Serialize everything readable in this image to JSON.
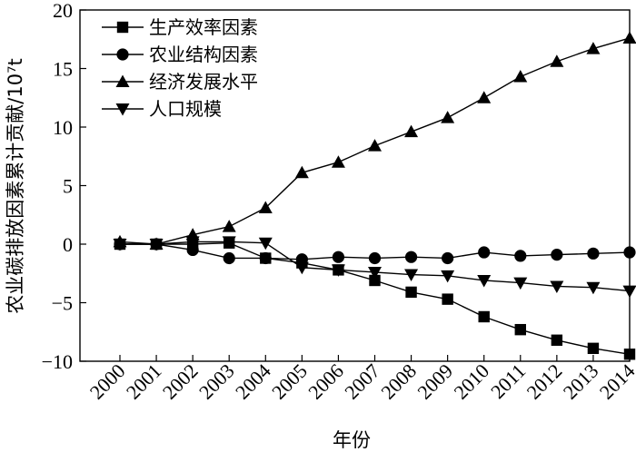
{
  "chart_data": {
    "type": "line",
    "xlabel": "年份",
    "ylabel": "农业碳排放因素累计贡献/10⁷t",
    "x": [
      "2000",
      "2001",
      "2002",
      "2003",
      "2004",
      "2005",
      "2006",
      "2007",
      "2008",
      "2009",
      "2010",
      "2011",
      "2012",
      "2013",
      "2014"
    ],
    "ylim": [
      -10,
      20
    ],
    "yticks": [
      -10,
      -5,
      0,
      5,
      10,
      15,
      20
    ],
    "legend_position": "top-left",
    "series": [
      {
        "name": "生产效率因素",
        "marker": "square",
        "values": [
          0.0,
          0.0,
          0.0,
          0.1,
          -1.2,
          -1.6,
          -2.2,
          -3.1,
          -4.1,
          -4.7,
          -6.2,
          -7.3,
          -8.2,
          -8.9,
          -9.4
        ]
      },
      {
        "name": "农业结构因素",
        "marker": "circle",
        "values": [
          0.0,
          0.0,
          -0.5,
          -1.2,
          -1.2,
          -1.3,
          -1.1,
          -1.2,
          -1.1,
          -1.2,
          -0.7,
          -1.0,
          -0.9,
          -0.8,
          -0.7
        ]
      },
      {
        "name": "经济发展水平",
        "marker": "triangle-up",
        "values": [
          0.2,
          0.0,
          0.8,
          1.5,
          3.1,
          6.1,
          7.0,
          8.4,
          9.6,
          10.8,
          12.5,
          14.3,
          15.6,
          16.7,
          17.6
        ]
      },
      {
        "name": "人口规模",
        "marker": "triangle-down",
        "values": [
          0.0,
          0.0,
          0.2,
          0.2,
          0.1,
          -2.0,
          -2.2,
          -2.4,
          -2.6,
          -2.7,
          -3.1,
          -3.3,
          -3.6,
          -3.7,
          -4.0
        ]
      }
    ]
  }
}
